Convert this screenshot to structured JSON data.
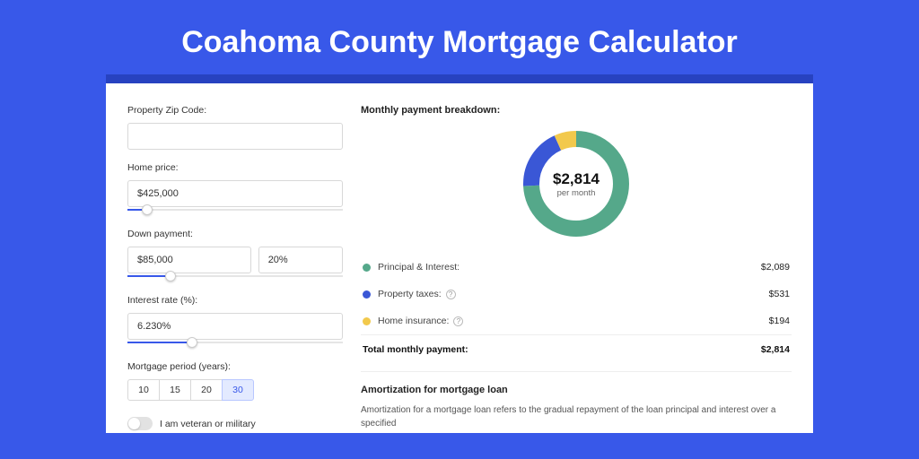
{
  "title": "Coahoma County Mortgage Calculator",
  "colors": {
    "page_bg": "#3858e9",
    "frame_accent": "#2742c0",
    "slider_fill": "#3858e9",
    "period_active_bg": "#e3eaff",
    "period_active_fg": "#3858e9"
  },
  "form": {
    "zip_label": "Property Zip Code:",
    "zip_value": "",
    "home_price_label": "Home price:",
    "home_price_value": "$425,000",
    "home_price_slider_pct": 9,
    "down_payment_label": "Down payment:",
    "down_payment_value": "$85,000",
    "down_payment_pct_value": "20%",
    "down_payment_slider_pct": 20,
    "interest_label": "Interest rate (%):",
    "interest_value": "6.230%",
    "interest_slider_pct": 30,
    "period_label": "Mortgage period (years):",
    "period_options": [
      "10",
      "15",
      "20",
      "30"
    ],
    "period_selected_index": 3,
    "veteran_label": "I am veteran or military",
    "veteran_on": false
  },
  "breakdown": {
    "title": "Monthly payment breakdown:",
    "amount": "$2,814",
    "sub": "per month",
    "donut": {
      "radius": 50,
      "stroke_width": 18,
      "background": "#ffffff",
      "slices": [
        {
          "key": "pi",
          "color": "#55a88a",
          "fraction": 0.742
        },
        {
          "key": "tax",
          "color": "#3a57d6",
          "fraction": 0.189
        },
        {
          "key": "ins",
          "color": "#f2c94c",
          "fraction": 0.069
        }
      ]
    },
    "items": [
      {
        "label": "Principal & Interest:",
        "value": "$2,089",
        "swatch": "#55a88a",
        "info": false
      },
      {
        "label": "Property taxes:",
        "value": "$531",
        "swatch": "#3a57d6",
        "info": true
      },
      {
        "label": "Home insurance:",
        "value": "$194",
        "swatch": "#f2c94c",
        "info": true
      }
    ],
    "total_label": "Total monthly payment:",
    "total_value": "$2,814"
  },
  "amortization": {
    "title": "Amortization for mortgage loan",
    "body": "Amortization for a mortgage loan refers to the gradual repayment of the loan principal and interest over a specified"
  }
}
